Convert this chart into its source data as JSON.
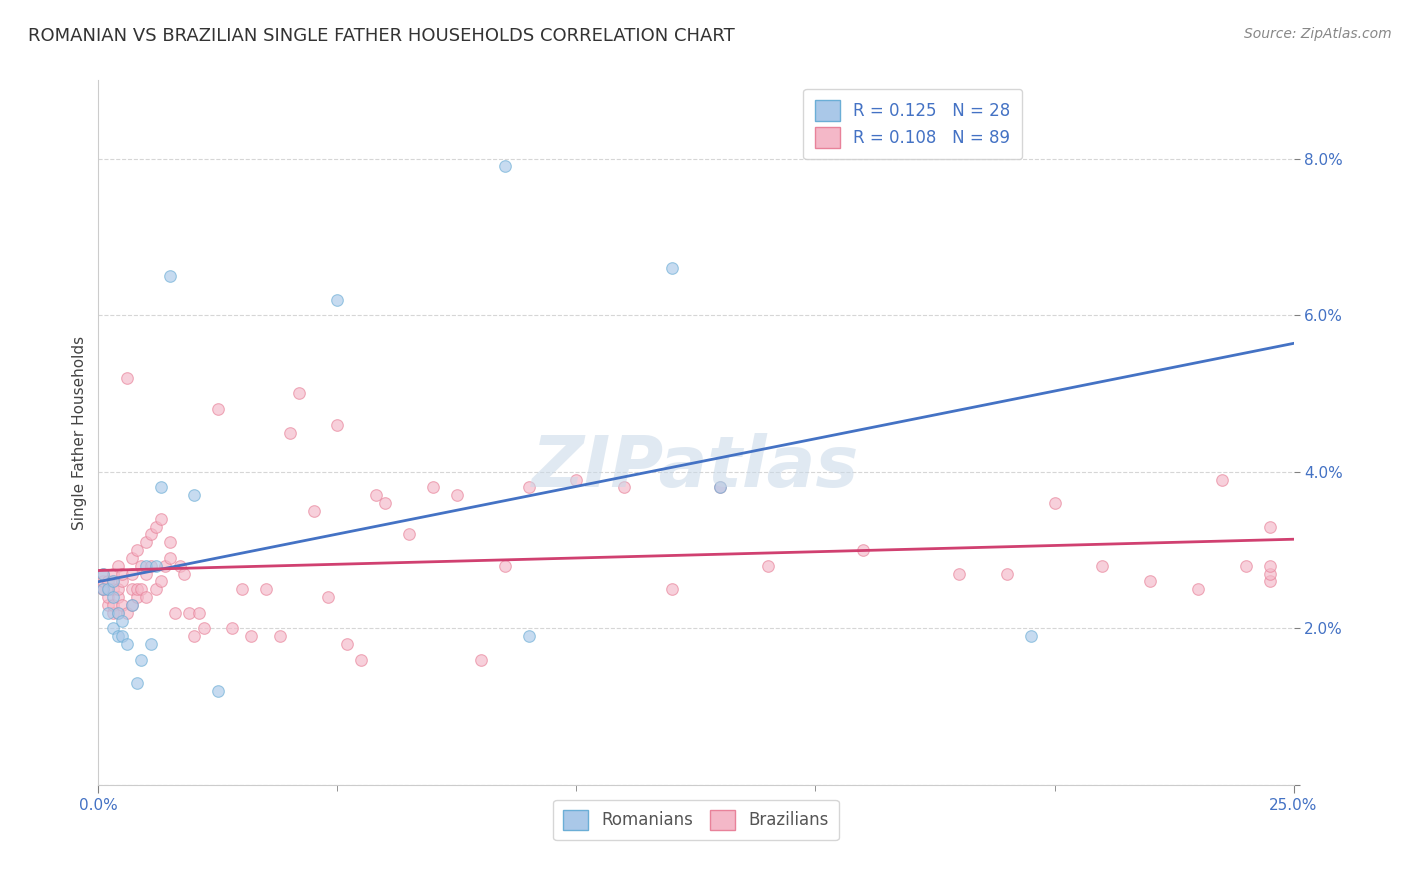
{
  "title": "ROMANIAN VS BRAZILIAN SINGLE FATHER HOUSEHOLDS CORRELATION CHART",
  "source": "Source: ZipAtlas.com",
  "ylabel": "Single Father Households",
  "xlim": [
    0.0,
    0.25
  ],
  "ylim": [
    0.0,
    0.09
  ],
  "xticks_major": [
    0.0,
    0.25
  ],
  "xtick_minor": [
    0.05,
    0.1,
    0.15,
    0.2
  ],
  "xticklabels_major": [
    "0.0%",
    "25.0%"
  ],
  "yticks": [
    0.0,
    0.02,
    0.04,
    0.06,
    0.08
  ],
  "yticklabels": [
    "",
    "2.0%",
    "4.0%",
    "6.0%",
    "8.0%"
  ],
  "romanian_color_edge": "#6baed6",
  "romanian_color_fill": "#aac8e8",
  "brazilian_color_edge": "#e8829a",
  "brazilian_color_fill": "#f4b8c8",
  "line_romanian_color": "#4472c4",
  "line_brazilian_color": "#d04070",
  "R_romanian": 0.125,
  "N_romanian": 28,
  "R_brazilian": 0.108,
  "N_brazilian": 89,
  "legend_label_romanian": "Romanians",
  "legend_label_brazilian": "Brazilians",
  "romanian_x": [
    0.001,
    0.001,
    0.002,
    0.002,
    0.003,
    0.003,
    0.003,
    0.004,
    0.004,
    0.005,
    0.005,
    0.006,
    0.007,
    0.008,
    0.009,
    0.01,
    0.011,
    0.012,
    0.013,
    0.015,
    0.02,
    0.025,
    0.05,
    0.085,
    0.09,
    0.12,
    0.13,
    0.195
  ],
  "romanian_y": [
    0.027,
    0.025,
    0.025,
    0.022,
    0.026,
    0.024,
    0.02,
    0.022,
    0.019,
    0.021,
    0.019,
    0.018,
    0.023,
    0.013,
    0.016,
    0.028,
    0.018,
    0.028,
    0.038,
    0.065,
    0.037,
    0.012,
    0.062,
    0.079,
    0.019,
    0.066,
    0.038,
    0.019
  ],
  "brazilian_x": [
    0.001,
    0.001,
    0.001,
    0.001,
    0.002,
    0.002,
    0.002,
    0.002,
    0.003,
    0.003,
    0.003,
    0.003,
    0.003,
    0.004,
    0.004,
    0.004,
    0.004,
    0.005,
    0.005,
    0.005,
    0.006,
    0.006,
    0.007,
    0.007,
    0.007,
    0.007,
    0.008,
    0.008,
    0.008,
    0.009,
    0.009,
    0.01,
    0.01,
    0.01,
    0.011,
    0.011,
    0.012,
    0.012,
    0.013,
    0.013,
    0.014,
    0.015,
    0.015,
    0.016,
    0.017,
    0.018,
    0.019,
    0.02,
    0.021,
    0.022,
    0.025,
    0.028,
    0.03,
    0.032,
    0.035,
    0.038,
    0.04,
    0.042,
    0.045,
    0.048,
    0.05,
    0.052,
    0.055,
    0.058,
    0.06,
    0.065,
    0.07,
    0.075,
    0.08,
    0.085,
    0.09,
    0.1,
    0.11,
    0.12,
    0.13,
    0.14,
    0.16,
    0.18,
    0.19,
    0.2,
    0.21,
    0.22,
    0.23,
    0.235,
    0.24,
    0.245,
    0.245,
    0.245,
    0.245
  ],
  "brazilian_y": [
    0.025,
    0.025,
    0.026,
    0.027,
    0.023,
    0.024,
    0.025,
    0.026,
    0.022,
    0.023,
    0.025,
    0.026,
    0.027,
    0.022,
    0.024,
    0.025,
    0.028,
    0.023,
    0.026,
    0.027,
    0.022,
    0.052,
    0.023,
    0.025,
    0.027,
    0.029,
    0.024,
    0.025,
    0.03,
    0.025,
    0.028,
    0.024,
    0.027,
    0.031,
    0.028,
    0.032,
    0.025,
    0.033,
    0.026,
    0.034,
    0.028,
    0.029,
    0.031,
    0.022,
    0.028,
    0.027,
    0.022,
    0.019,
    0.022,
    0.02,
    0.048,
    0.02,
    0.025,
    0.019,
    0.025,
    0.019,
    0.045,
    0.05,
    0.035,
    0.024,
    0.046,
    0.018,
    0.016,
    0.037,
    0.036,
    0.032,
    0.038,
    0.037,
    0.016,
    0.028,
    0.038,
    0.039,
    0.038,
    0.025,
    0.038,
    0.028,
    0.03,
    0.027,
    0.027,
    0.036,
    0.028,
    0.026,
    0.025,
    0.039,
    0.028,
    0.026,
    0.027,
    0.028,
    0.033
  ],
  "background_color": "#ffffff",
  "grid_color": "#cccccc",
  "marker_size": 70,
  "marker_alpha": 0.65,
  "title_fontsize": 13,
  "axis_label_fontsize": 11,
  "tick_fontsize": 11,
  "legend_fontsize": 12,
  "source_fontsize": 10
}
